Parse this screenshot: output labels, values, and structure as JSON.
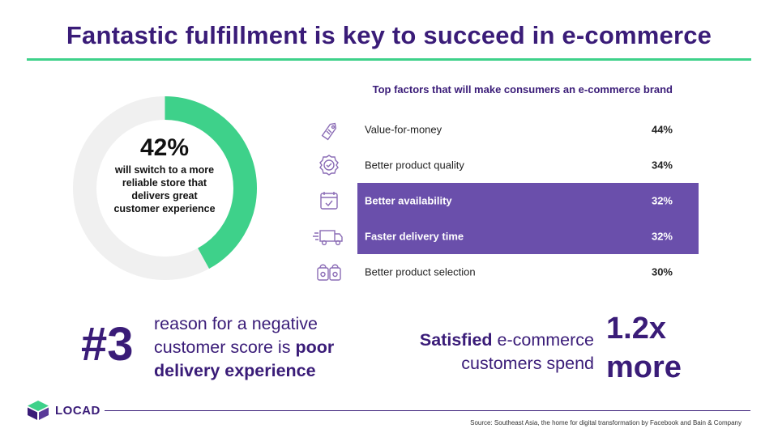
{
  "title": "Fantastic fulfillment is key to succeed in e-commerce",
  "donut": {
    "value_percent": 42,
    "percent_label": "42%",
    "caption": "will switch to a more reliable store that delivers great customer experience",
    "accent_color": "#3ed18a",
    "track_color": "#f0f0f0"
  },
  "factors": {
    "heading": "Top factors that will make consumers an e-commerce brand",
    "items": [
      {
        "icon": "price-tag-icon",
        "label": "Value-for-money",
        "value": "44%",
        "highlighted": false
      },
      {
        "icon": "quality-badge-icon",
        "label": "Better product quality",
        "value": "34%",
        "highlighted": false
      },
      {
        "icon": "calendar-check-icon",
        "label": "Better availability",
        "value": "32%",
        "highlighted": true
      },
      {
        "icon": "delivery-truck-icon",
        "label": "Faster delivery time",
        "value": "32%",
        "highlighted": true
      },
      {
        "icon": "shopping-bags-icon",
        "label": "Better product selection",
        "value": "30%",
        "highlighted": false
      }
    ],
    "highlight_color": "#6a4fab"
  },
  "reason_stat": {
    "big": "#3",
    "text_plain": "reason for a negative customer score is ",
    "text_bold": "poor delivery experience"
  },
  "spend_stat": {
    "text_bold": "Satisfied",
    "text_plain": " e-commerce customers spend",
    "big_line1": "1.2x",
    "big_line2": "more"
  },
  "footer": {
    "brand": "LOCAD",
    "source": "Source: Southeast Asia, the home for digital transformation by Facebook and Bain & Company"
  },
  "colors": {
    "brand_purple": "#3a1c78",
    "accent_green": "#3ed18a"
  }
}
